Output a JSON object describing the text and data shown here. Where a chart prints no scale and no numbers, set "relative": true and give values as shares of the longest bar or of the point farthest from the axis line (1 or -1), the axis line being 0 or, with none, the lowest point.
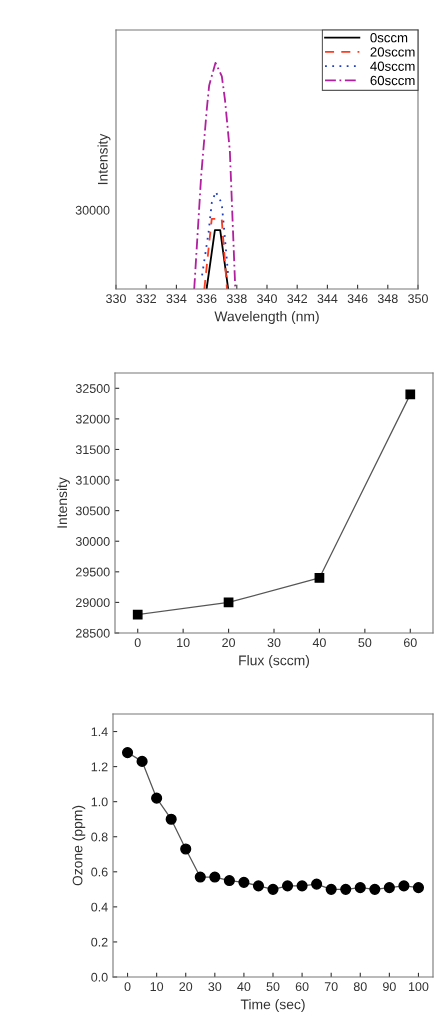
{
  "chart_data": [
    {
      "type": "line",
      "relative": true,
      "xlabel": "Wavelength (nm)",
      "ylabel": "Intensity",
      "xlim": [
        330,
        350
      ],
      "xticks": [
        330,
        332,
        334,
        336,
        338,
        340,
        342,
        344,
        346,
        348,
        350
      ],
      "annotations": [
        "30000"
      ],
      "legend": "top right",
      "series": [
        {
          "name": "0sccm",
          "color": "#000000",
          "line_style": "solid",
          "x": [
            336.0,
            336.55,
            336.9,
            337.43
          ],
          "values": [
            0,
            0.26,
            0.26,
            0
          ]
        },
        {
          "name": "20sccm",
          "color": "#ff3b1f",
          "line_style": "dashed",
          "x": [
            335.85,
            336.34,
            336.7,
            337.0,
            337.35
          ],
          "values": [
            0,
            0.31,
            0.31,
            0.31,
            0
          ]
        },
        {
          "name": "40sccm",
          "color": "#1f3fbf",
          "line_style": "dotted",
          "x": [
            335.7,
            336.13,
            336.34,
            336.6,
            337.0,
            337.18,
            337.43
          ],
          "values": [
            0.06,
            0.25,
            0.38,
            0.43,
            0.38,
            0.25,
            0.06
          ]
        },
        {
          "name": "60sccm",
          "color": "#b0209f",
          "line_style": "dashdot",
          "x": [
            335.18,
            335.64,
            336.02,
            336.17,
            336.59,
            337.01,
            337.22,
            337.54,
            337.9
          ],
          "values": [
            0,
            0.5,
            0.8,
            0.9,
            1.0,
            0.94,
            0.835,
            0.61,
            0
          ]
        }
      ]
    },
    {
      "type": "line",
      "xlabel": "Flux (sccm)",
      "ylabel": "Intensity",
      "xlim": [
        -5,
        65
      ],
      "xticks": [
        0,
        10,
        20,
        30,
        40,
        50,
        60
      ],
      "ylim": [
        28500,
        32750
      ],
      "yticks": [
        28500,
        29000,
        29500,
        30000,
        30500,
        31000,
        31500,
        32000,
        32500
      ],
      "marker": "square",
      "series": [
        {
          "color": "#000000",
          "x": [
            0,
            20,
            40,
            60
          ],
          "values": [
            28800,
            29000,
            29400,
            32400
          ]
        }
      ]
    },
    {
      "type": "line",
      "xlabel": "Time (sec)",
      "ylabel": "Ozone (ppm)",
      "xlim": [
        -5,
        105
      ],
      "xticks": [
        0,
        10,
        20,
        30,
        40,
        50,
        60,
        70,
        80,
        90,
        100
      ],
      "ylim": [
        0,
        1.5
      ],
      "yticks": [
        {
          "value": 0,
          "label": "0.0"
        },
        0.2,
        0.4,
        0.6,
        0.8,
        {
          "value": 1,
          "label": "1.0"
        },
        1.2,
        1.4
      ],
      "marker": "circle",
      "series": [
        {
          "color": "#000000",
          "x": [
            0,
            5,
            10,
            15,
            20,
            25,
            30,
            35,
            40,
            45,
            50,
            55,
            60,
            65,
            70,
            75,
            80,
            85,
            90,
            95,
            100
          ],
          "values": [
            1.28,
            1.23,
            1.02,
            0.9,
            0.73,
            0.57,
            0.57,
            0.55,
            0.54,
            0.52,
            0.5,
            0.52,
            0.52,
            0.53,
            0.5,
            0.5,
            0.51,
            0.5,
            0.51,
            0.52,
            0.51
          ]
        }
      ]
    }
  ]
}
